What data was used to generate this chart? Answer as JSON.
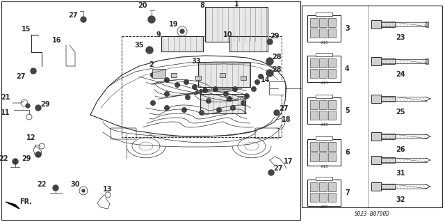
{
  "fig_width": 6.4,
  "fig_height": 3.19,
  "dpi": 100,
  "bg_color": "#ffffff",
  "line_color": "#2a2a2a",
  "gray_color": "#888888",
  "dark_gray": "#444444",
  "diagram_code": "S023-B0700D"
}
